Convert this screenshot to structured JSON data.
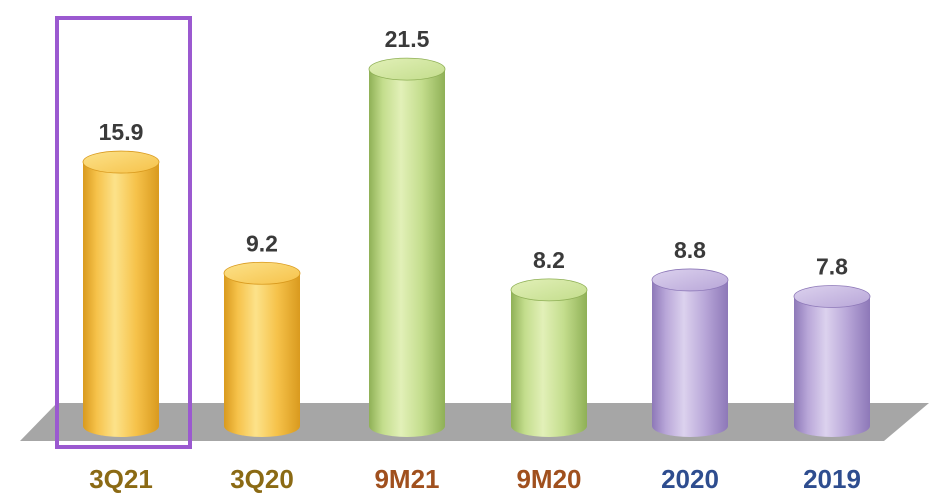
{
  "chart_data": {
    "type": "bar",
    "categories": [
      "3Q21",
      "3Q20",
      "9M21",
      "9M20",
      "2020",
      "2019"
    ],
    "values": [
      15.9,
      9.2,
      21.5,
      8.2,
      8.8,
      7.8
    ],
    "value_labels": [
      "15.9",
      "9.2",
      "21.5",
      "8.2",
      "8.8",
      "7.8"
    ],
    "title": "",
    "xlabel": "",
    "ylabel": "",
    "ylim": [
      0,
      21.5
    ],
    "grid": false,
    "legend": "none",
    "highlighted_category": "3Q21",
    "bar_groups": [
      "orange",
      "orange",
      "green",
      "green",
      "purple",
      "purple"
    ]
  },
  "colors": {
    "orange_light": "#FCE28A",
    "orange": "#F6C24A",
    "orange_dark": "#D99A1E",
    "green_light": "#E2F0B8",
    "green": "#C3DD8C",
    "green_dark": "#8FB056",
    "purple_light": "#DCD2EE",
    "purple": "#B8A6D8",
    "purple_dark": "#8D78B8",
    "floor": "#A6A6A6",
    "highlight_box": "#9B59D0",
    "label_orange": "#8B6A14",
    "label_brown": "#A0501E",
    "label_blue": "#2E4D8F"
  },
  "category_label_colors": [
    "#8B6A14",
    "#8B6A14",
    "#A0501E",
    "#A0501E",
    "#2E4D8F",
    "#2E4D8F"
  ]
}
